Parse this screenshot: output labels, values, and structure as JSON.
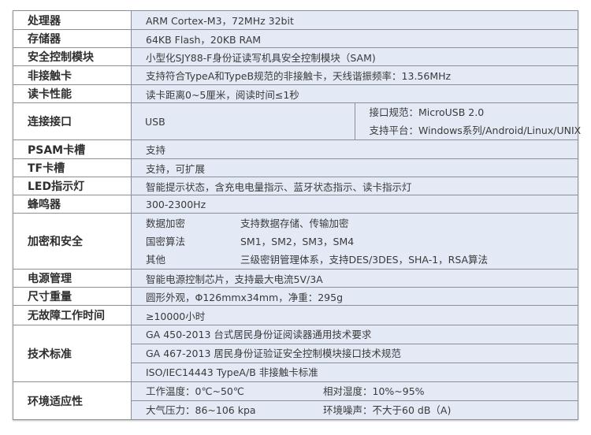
{
  "rows": [
    {
      "label": "处理器",
      "value": "ARM Cortex-M3，72MHz 32bit"
    },
    {
      "label": "存储器",
      "value": "64KB Flash，20KB RAM"
    },
    {
      "label": "安全控制模块",
      "value": "小型化SJY88-F身份证读写机具安全控制模块（SAM)"
    },
    {
      "label": "非接触卡",
      "value": "支持符合TypeA和TypeB规范的非接触卡，天线谐振频率：13.56MHz"
    },
    {
      "label": "读卡性能",
      "value": "读卡距离0~5厘米，阅读时间≤1秒"
    }
  ],
  "connection": {
    "label": "连接接口",
    "type": "USB",
    "spec": "接口规范：MicroUSB 2.0",
    "platform": "支持平台：Windows系列/Android/Linux/UNIX"
  },
  "rows2": [
    {
      "label": "PSAM卡槽",
      "value": "支持"
    },
    {
      "label": "TF卡槽",
      "value": "支持，可扩展"
    },
    {
      "label": "LED指示灯",
      "value": "智能提示状态，含充电电量指示、蓝牙状态指示、读卡指示灯"
    },
    {
      "label": "蜂鸣器",
      "value": "300-2300Hz"
    }
  ],
  "security": {
    "label": "加密和安全",
    "items": [
      {
        "k": "数据加密",
        "v": "支持数据存储、传输加密"
      },
      {
        "k": "国密算法",
        "v": "SM1，SM2，SM3，SM4"
      },
      {
        "k": "其他",
        "v": "三级密钥管理体系，支持DES/3DES，SHA-1，RSA算法"
      }
    ]
  },
  "rows3": [
    {
      "label": "电源管理",
      "value": "智能电源控制芯片，支持最大电流5V/3A"
    },
    {
      "label": "尺寸重量",
      "value": "圆形外观，Φ126mmx34mm，净重：295g"
    },
    {
      "label": "无故障工作时间",
      "value": "≥10000小时"
    }
  ],
  "standards": {
    "label": "技术标准",
    "items": [
      "GA 450-2013 台式居民身份证阅读器通用技术要求",
      "GA 467-2013 居民身份证验证安全控制模块接口技术规范",
      "ISO/IEC14443 TypeA/B 非接触卡标准"
    ]
  },
  "environment": {
    "label": "环境适应性",
    "items": [
      {
        "k": "工作温度：0℃~50℃",
        "v": "相对湿度：10%~95%"
      },
      {
        "k": "大气压力：86~106 kpa",
        "v": "环境噪声：不大于60 dB（A)"
      }
    ]
  }
}
